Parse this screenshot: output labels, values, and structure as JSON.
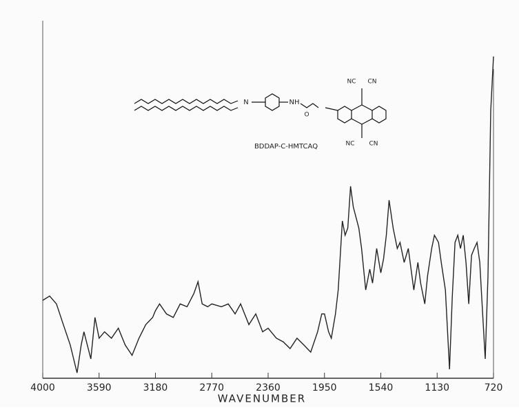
{
  "chart_data": {
    "type": "line",
    "x_label": "WAVENUMBER",
    "annotations": [
      "BDDAP-C-HMTCAQ",
      "N",
      "NH",
      "O",
      "NC",
      "CN",
      "NC",
      "CN"
    ],
    "x": [
      4000,
      3950,
      3900,
      3850,
      3800,
      3750,
      3720,
      3700,
      3650,
      3620,
      3590,
      3550,
      3500,
      3450,
      3400,
      3350,
      3300,
      3250,
      3200,
      3180,
      3150,
      3100,
      3050,
      3000,
      2950,
      2900,
      2870,
      2840,
      2800,
      2770,
      2700,
      2650,
      2600,
      2560,
      2500,
      2450,
      2400,
      2360,
      2300,
      2250,
      2200,
      2150,
      2100,
      2050,
      2000,
      1970,
      1950,
      1920,
      1900,
      1870,
      1850,
      1820,
      1800,
      1780,
      1760,
      1740,
      1700,
      1680,
      1650,
      1620,
      1600,
      1570,
      1540,
      1520,
      1500,
      1480,
      1450,
      1420,
      1400,
      1370,
      1340,
      1300,
      1270,
      1250,
      1220,
      1200,
      1170,
      1150,
      1120,
      1100,
      1070,
      1040,
      1020,
      1000,
      980,
      960,
      940,
      920,
      900,
      880,
      860,
      840,
      820,
      800,
      780,
      760,
      740,
      720
    ],
    "series": [
      {
        "color": "#222222",
        "values": [
          21.8,
          23,
          20.8,
          15,
          9.3,
          1.5,
          9.3,
          13,
          5.4,
          17,
          11.2,
          13,
          11.2,
          14,
          9.3,
          6.4,
          11.2,
          15,
          17,
          18.9,
          20.8,
          18,
          17,
          20.8,
          20,
          23.7,
          27,
          20.8,
          20,
          20.8,
          20,
          20.8,
          18,
          20.8,
          15,
          18,
          13,
          14,
          11.2,
          10.2,
          8.3,
          11.2,
          9.3,
          7.3,
          13,
          18,
          18,
          13,
          11.2,
          18,
          24.7,
          44,
          40,
          42,
          53.7,
          47.9,
          42,
          36.3,
          24.7,
          30.5,
          26.6,
          36.3,
          29.5,
          33.4,
          40,
          49.8,
          42,
          36.3,
          38,
          32.4,
          36.3,
          24.7,
          32.4,
          26.6,
          20.8,
          28.6,
          36.3,
          40,
          38,
          32.4,
          24.7,
          2.5,
          22.8,
          38,
          40,
          36.3,
          40,
          32.4,
          20.8,
          34.4,
          36.3,
          38,
          32.4,
          18.9,
          5.4,
          28.6,
          74.9,
          90
        ]
      }
    ],
    "xlim": [
      4000,
      720
    ],
    "xticks": [
      4000,
      3590,
      3180,
      2770,
      2360,
      1950,
      1540,
      1130,
      720
    ],
    "ylim": [
      0,
      100
    ]
  }
}
